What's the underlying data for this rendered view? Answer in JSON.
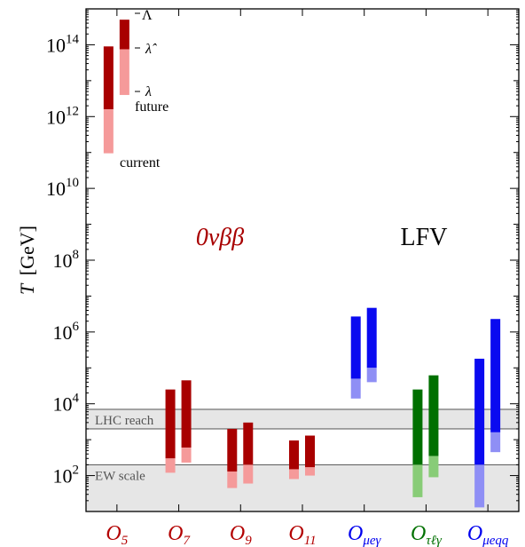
{
  "chart_data": {
    "type": "floating-bar",
    "yscale": "log",
    "ylim": [
      10.0,
      1000000000000000.0
    ],
    "ylabel_var": "T",
    "ylabel_unit": "[GeV]",
    "y_major_ticks": [
      {
        "value": 100,
        "base": "10",
        "exp": "2"
      },
      {
        "value": 10000,
        "base": "10",
        "exp": "4"
      },
      {
        "value": 1000000,
        "base": "10",
        "exp": "6"
      },
      {
        "value": 100000000,
        "base": "10",
        "exp": "8"
      },
      {
        "value": 10000000000,
        "base": "10",
        "exp": "10"
      },
      {
        "value": 1000000000000,
        "base": "10",
        "exp": "12"
      },
      {
        "value": 100000000000000,
        "base": "10",
        "exp": "14"
      }
    ],
    "group_labels": {
      "onbb": "0νββ",
      "lfv": "LFV"
    },
    "categories": [
      {
        "main": "O",
        "sub": "5",
        "color": "#b30000"
      },
      {
        "main": "O",
        "sub": "7",
        "color": "#b30000"
      },
      {
        "main": "O",
        "sub": "9",
        "color": "#b30000"
      },
      {
        "main": "O",
        "sub": "11",
        "color": "#b30000"
      },
      {
        "main": "O",
        "sub": "μeγ",
        "color": "#0000ee"
      },
      {
        "main": "O",
        "sub": "τℓγ",
        "color": "#007000"
      },
      {
        "main": "O",
        "sub": "μeqq",
        "color": "#0000ee"
      }
    ],
    "bands": [
      {
        "label": "LHC reach",
        "from": 2000,
        "to": 7000
      },
      {
        "label": "EW scale",
        "from": 10,
        "to": 200
      }
    ],
    "series": [
      {
        "category": 0,
        "which": "current",
        "low": 95000000000.0,
        "mid": 1600000000000.0,
        "high": 90000000000000.0,
        "dark": "#a80000",
        "light": "#f59a9a"
      },
      {
        "category": 0,
        "which": "future",
        "low": 4000000000000.0,
        "mid": 75000000000000.0,
        "high": 500000000000000.0,
        "dark": "#a80000",
        "light": "#f59a9a"
      },
      {
        "category": 1,
        "which": "current",
        "low": 120,
        "mid": 300,
        "high": 25000,
        "dark": "#a80000",
        "light": "#f59a9a"
      },
      {
        "category": 1,
        "which": "future",
        "low": 230,
        "mid": 600,
        "high": 45000,
        "dark": "#a80000",
        "light": "#f59a9a"
      },
      {
        "category": 2,
        "which": "current",
        "low": 45,
        "mid": 130,
        "high": 2000,
        "dark": "#a80000",
        "light": "#f59a9a"
      },
      {
        "category": 2,
        "which": "future",
        "low": 60,
        "mid": 200,
        "high": 3000,
        "dark": "#a80000",
        "light": "#f59a9a"
      },
      {
        "category": 3,
        "which": "current",
        "low": 80,
        "mid": 150,
        "high": 950,
        "dark": "#a80000",
        "light": "#f59a9a"
      },
      {
        "category": 3,
        "which": "future",
        "low": 100,
        "mid": 170,
        "high": 1300,
        "dark": "#a80000",
        "light": "#f59a9a"
      },
      {
        "category": 4,
        "which": "current",
        "low": 14000,
        "mid": 50000,
        "high": 2700000,
        "dark": "#0a0af0",
        "light": "#8f8ff5"
      },
      {
        "category": 4,
        "which": "future",
        "low": 40000,
        "mid": 100000,
        "high": 4700000,
        "dark": "#0a0af0",
        "light": "#8f8ff5"
      },
      {
        "category": 5,
        "which": "current",
        "low": 25,
        "mid": 200,
        "high": 25000,
        "dark": "#007000",
        "light": "#88cc77"
      },
      {
        "category": 5,
        "which": "future",
        "low": 90,
        "mid": 350,
        "high": 62000,
        "dark": "#007000",
        "light": "#88cc77"
      },
      {
        "category": 6,
        "which": "current",
        "low": 13,
        "mid": 200,
        "high": 180000,
        "dark": "#0a0af0",
        "light": "#8f8ff5"
      },
      {
        "category": 6,
        "which": "future",
        "low": 450,
        "mid": 1600,
        "high": 2300000,
        "dark": "#0a0af0",
        "light": "#8f8ff5"
      }
    ],
    "annotations": {
      "Lambda": "Λ",
      "lambda_hat": "λ̂",
      "lambda": "λ",
      "future": "future",
      "current": "current"
    }
  }
}
